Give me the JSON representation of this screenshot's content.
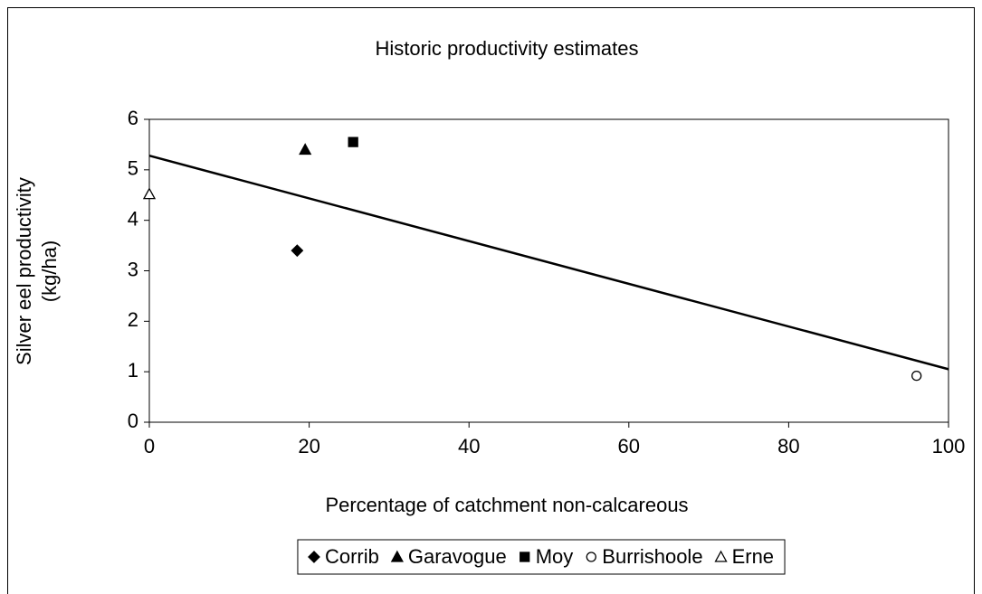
{
  "chart_data": {
    "type": "scatter",
    "title": "Historic productivity estimates",
    "xlabel": "Percentage of catchment non-calcareous",
    "ylabel": [
      "Silver eel productivity",
      "(kg/ha)"
    ],
    "xlim": [
      0,
      100
    ],
    "xticks": [
      0,
      20,
      40,
      60,
      80,
      100
    ],
    "ylim": [
      0,
      6
    ],
    "yticks": [
      0,
      1,
      2,
      3,
      4,
      5,
      6
    ],
    "grid": false,
    "legend": "bottom",
    "series": [
      {
        "name": "Corrib",
        "color": "#000000",
        "marker": "diamond",
        "filled": true,
        "x": [
          18.5
        ],
        "values": [
          3.4
        ]
      },
      {
        "name": "Garavogue",
        "color": "#000000",
        "marker": "triangle",
        "filled": true,
        "x": [
          19.5
        ],
        "values": [
          5.4
        ]
      },
      {
        "name": "Moy",
        "color": "#000000",
        "marker": "square",
        "filled": true,
        "x": [
          25.5
        ],
        "values": [
          5.55
        ]
      },
      {
        "name": "Burrishoole",
        "color": "#000000",
        "marker": "circle",
        "filled": false,
        "x": [
          96
        ],
        "values": [
          0.92
        ]
      },
      {
        "name": "Erne",
        "color": "#000000",
        "marker": "triangle",
        "filled": false,
        "x": [
          0
        ],
        "values": [
          4.52
        ]
      }
    ],
    "trendline": {
      "color": "#000000",
      "x": [
        0,
        100
      ],
      "values": [
        5.28,
        1.05
      ]
    }
  }
}
